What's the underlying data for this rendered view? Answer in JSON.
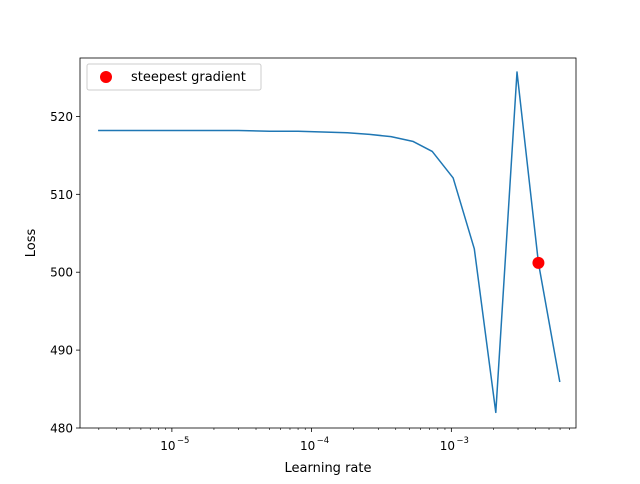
{
  "chart_data": {
    "type": "line",
    "title": "",
    "xlabel": "Learning rate",
    "ylabel": "Loss",
    "xscale": "log",
    "xlim": [
      2.2e-06,
      0.0078
    ],
    "ylim": [
      480,
      527.5
    ],
    "x_ticks": [
      {
        "value": 1e-05,
        "base": "10",
        "exp": "−5"
      },
      {
        "value": 0.0001,
        "base": "10",
        "exp": "−4"
      },
      {
        "value": 0.001,
        "base": "10",
        "exp": "−3"
      }
    ],
    "y_ticks": [
      480,
      490,
      500,
      510,
      520
    ],
    "grid": false,
    "legend": {
      "position": "upper-left",
      "entries": [
        "steepest gradient"
      ]
    },
    "series": [
      {
        "kind": "line",
        "color": "#1f77b4",
        "points": [
          [
            3e-06,
            518.2
          ],
          [
            4e-06,
            518.2
          ],
          [
            6e-06,
            518.2
          ],
          [
            1e-05,
            518.2
          ],
          [
            2e-05,
            518.2
          ],
          [
            3e-05,
            518.2
          ],
          [
            5e-05,
            518.1
          ],
          [
            8e-05,
            518.1
          ],
          [
            0.00012,
            518.0
          ],
          [
            0.00018,
            517.9
          ],
          [
            0.00026,
            517.7
          ],
          [
            0.00037,
            517.4
          ],
          [
            0.00053,
            516.8
          ],
          [
            0.00073,
            515.5
          ],
          [
            0.00103,
            512.1
          ],
          [
            0.00146,
            503.0
          ],
          [
            0.00208,
            482.0
          ],
          [
            0.00295,
            525.7
          ],
          [
            0.0042,
            501.2
          ],
          [
            0.00596,
            486.0
          ]
        ]
      },
      {
        "kind": "scatter",
        "name": "steepest gradient",
        "color": "#ff0000",
        "points": [
          [
            0.0042,
            501.2
          ]
        ]
      }
    ]
  }
}
